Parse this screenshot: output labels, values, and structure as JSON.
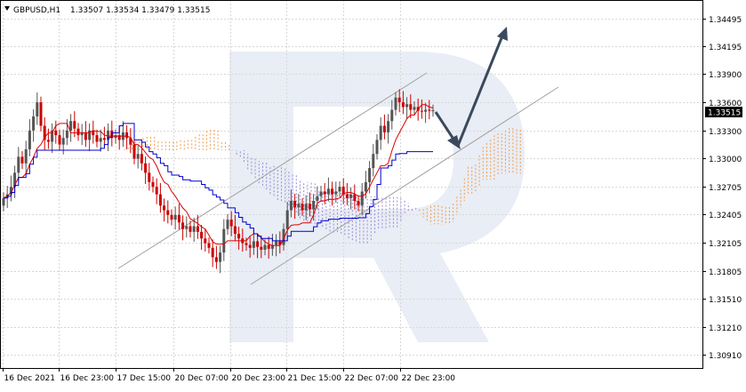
{
  "header": {
    "symbol": "GBPUSD,H1",
    "ohlc": "1.33507 1.33534 1.33479 1.33515"
  },
  "chart_data": {
    "type": "candlestick",
    "symbol": "GBPUSD",
    "timeframe": "H1",
    "grid": true,
    "ylim": [
      1.3077,
      1.3469
    ],
    "y_ticks": [
      "1.34495",
      "1.34195",
      "1.33900",
      "1.33600",
      "1.33300",
      "1.33000",
      "1.32705",
      "1.32405",
      "1.32105",
      "1.31805",
      "1.31510",
      "1.31210",
      "1.30910"
    ],
    "x_ticks": [
      "16 Dec 2021",
      "16 Dec 23:00",
      "17 Dec 15:00",
      "20 Dec 07:00",
      "20 Dec 23:00",
      "21 Dec 15:00",
      "22 Dec 07:00",
      "22 Dec 23:00"
    ],
    "current_price": "1.33515",
    "close_series": [
      1.3258,
      1.3262,
      1.327,
      1.3285,
      1.3302,
      1.3295,
      1.331,
      1.333,
      1.3345,
      1.336,
      1.3335,
      1.332,
      1.3318,
      1.333,
      1.3325,
      1.3315,
      1.3322,
      1.333,
      1.334,
      1.3332,
      1.3325,
      1.3328,
      1.332,
      1.333,
      1.3325,
      1.3318,
      1.3322,
      1.332,
      1.333,
      1.3322,
      1.3325,
      1.332,
      1.3328,
      1.3322,
      1.3315,
      1.33,
      1.3305,
      1.3295,
      1.3285,
      1.3275,
      1.327,
      1.3262,
      1.325,
      1.3245,
      1.324,
      1.3235,
      1.324,
      1.3232,
      1.3225,
      1.3228,
      1.3222,
      1.3228,
      1.3222,
      1.3215,
      1.321,
      1.3205,
      1.3195,
      1.319,
      1.32,
      1.3225,
      1.3235,
      1.3228,
      1.322,
      1.3215,
      1.321,
      1.3208,
      1.3205,
      1.3212,
      1.3206,
      1.3203,
      1.3208,
      1.3204,
      1.3208,
      1.3212,
      1.3208,
      1.3225,
      1.3245,
      1.3255,
      1.3248,
      1.3252,
      1.3245,
      1.3252,
      1.3246,
      1.3255,
      1.326,
      1.3265,
      1.3262,
      1.3268,
      1.3262,
      1.3265,
      1.327,
      1.3262,
      1.3258,
      1.3262,
      1.3255,
      1.325,
      1.3265,
      1.3275,
      1.329,
      1.3305,
      1.332,
      1.3335,
      1.3328,
      1.334,
      1.3352,
      1.3365,
      1.336,
      1.3355,
      1.3358,
      1.3352,
      1.3355,
      1.3351,
      1.335,
      1.3352,
      1.3351,
      1.33515
    ],
    "open_series": [
      1.325,
      1.3258,
      1.3262,
      1.327,
      1.3285,
      1.3302,
      1.3295,
      1.331,
      1.333,
      1.3345,
      1.336,
      1.3335,
      1.332,
      1.3318,
      1.333,
      1.3325,
      1.3315,
      1.3322,
      1.333,
      1.334,
      1.3332,
      1.3325,
      1.3328,
      1.332,
      1.333,
      1.3325,
      1.3318,
      1.3322,
      1.332,
      1.333,
      1.3322,
      1.3325,
      1.332,
      1.3328,
      1.3322,
      1.3315,
      1.33,
      1.3305,
      1.3295,
      1.3285,
      1.3275,
      1.327,
      1.3262,
      1.325,
      1.3245,
      1.324,
      1.3235,
      1.324,
      1.3232,
      1.3225,
      1.3228,
      1.3222,
      1.3228,
      1.3222,
      1.3215,
      1.321,
      1.3205,
      1.3195,
      1.319,
      1.32,
      1.3225,
      1.3235,
      1.3228,
      1.322,
      1.3215,
      1.321,
      1.3208,
      1.3205,
      1.3212,
      1.3206,
      1.3203,
      1.3208,
      1.3204,
      1.3208,
      1.3212,
      1.3208,
      1.3225,
      1.3245,
      1.3255,
      1.3248,
      1.3252,
      1.3245,
      1.3252,
      1.3246,
      1.3255,
      1.326,
      1.3265,
      1.3262,
      1.3268,
      1.3262,
      1.3265,
      1.327,
      1.3262,
      1.3258,
      1.3262,
      1.3255,
      1.325,
      1.3265,
      1.3275,
      1.329,
      1.3305,
      1.332,
      1.3335,
      1.3328,
      1.334,
      1.3352,
      1.3365,
      1.336,
      1.3355,
      1.3358,
      1.3352,
      1.3355,
      1.3351,
      1.335,
      1.3352,
      1.33507
    ],
    "colors": {
      "bull": "#555555",
      "bear": "#cc0000",
      "kijun": "#0000cc",
      "tenkan": "#dd0000",
      "cloud_orange": "#f0a050",
      "cloud_purple": "#9a8cd8",
      "channel": "#a0a0a0",
      "arrow": "#3a4a5c"
    }
  }
}
